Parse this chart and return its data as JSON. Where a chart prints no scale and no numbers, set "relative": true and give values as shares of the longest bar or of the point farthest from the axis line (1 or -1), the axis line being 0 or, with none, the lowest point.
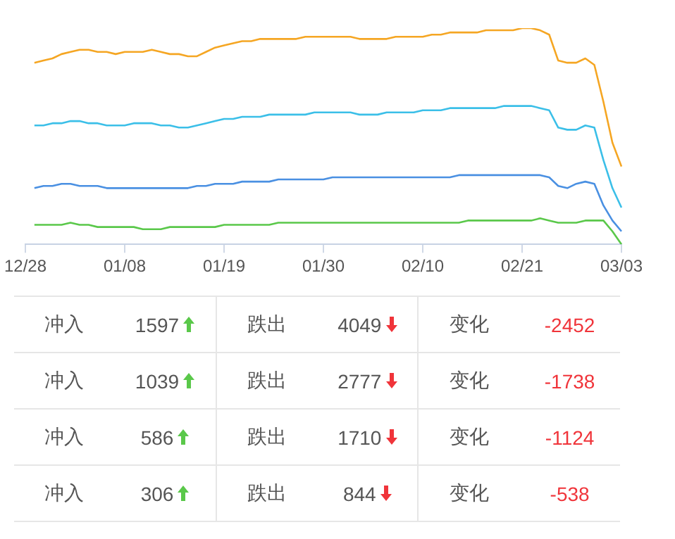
{
  "chart_data": {
    "type": "line",
    "relative": true,
    "marker": "none",
    "categories": [
      "12/28",
      null,
      null,
      null,
      null,
      null,
      null,
      null,
      null,
      null,
      null,
      "01/08",
      null,
      null,
      null,
      null,
      null,
      null,
      null,
      null,
      null,
      null,
      "01/19",
      null,
      null,
      null,
      null,
      null,
      null,
      null,
      null,
      null,
      null,
      "01/30",
      null,
      null,
      null,
      null,
      null,
      null,
      null,
      null,
      null,
      null,
      "02/10",
      null,
      null,
      null,
      null,
      null,
      null,
      null,
      null,
      null,
      null,
      "02/21",
      null,
      null,
      null,
      null,
      null,
      null,
      null,
      null,
      null,
      null,
      "03/03"
    ],
    "series": [
      {
        "color": "#f5a623",
        "values": [
          null,
          0.84,
          0.85,
          0.86,
          0.88,
          0.89,
          0.9,
          0.9,
          0.89,
          0.89,
          0.88,
          0.89,
          0.89,
          0.89,
          0.9,
          0.89,
          0.88,
          0.88,
          0.87,
          0.87,
          0.89,
          0.91,
          0.92,
          0.93,
          0.94,
          0.94,
          0.95,
          0.95,
          0.95,
          0.95,
          0.95,
          0.96,
          0.96,
          0.96,
          0.96,
          0.96,
          0.96,
          0.95,
          0.95,
          0.95,
          0.95,
          0.96,
          0.96,
          0.96,
          0.96,
          0.97,
          0.97,
          0.98,
          0.98,
          0.98,
          0.98,
          0.99,
          0.99,
          0.99,
          0.99,
          1,
          1,
          0.99,
          0.97,
          0.85,
          0.84,
          0.84,
          0.86,
          0.83,
          0.66,
          0.47,
          0.36
        ]
      },
      {
        "color": "#3bbfe8",
        "values": [
          null,
          0.55,
          0.55,
          0.56,
          0.56,
          0.57,
          0.57,
          0.56,
          0.56,
          0.55,
          0.55,
          0.55,
          0.56,
          0.56,
          0.56,
          0.55,
          0.55,
          0.54,
          0.54,
          0.55,
          0.56,
          0.57,
          0.58,
          0.58,
          0.59,
          0.59,
          0.59,
          0.6,
          0.6,
          0.6,
          0.6,
          0.6,
          0.61,
          0.61,
          0.61,
          0.61,
          0.61,
          0.6,
          0.6,
          0.6,
          0.61,
          0.61,
          0.61,
          0.61,
          0.62,
          0.62,
          0.62,
          0.63,
          0.63,
          0.63,
          0.63,
          0.63,
          0.63,
          0.64,
          0.64,
          0.64,
          0.64,
          0.63,
          0.62,
          0.54,
          0.53,
          0.53,
          0.55,
          0.54,
          0.39,
          0.26,
          0.17
        ]
      },
      {
        "color": "#4a90e2",
        "values": [
          null,
          0.26,
          0.27,
          0.27,
          0.28,
          0.28,
          0.27,
          0.27,
          0.27,
          0.26,
          0.26,
          0.26,
          0.26,
          0.26,
          0.26,
          0.26,
          0.26,
          0.26,
          0.26,
          0.27,
          0.27,
          0.28,
          0.28,
          0.28,
          0.29,
          0.29,
          0.29,
          0.29,
          0.3,
          0.3,
          0.3,
          0.3,
          0.3,
          0.3,
          0.31,
          0.31,
          0.31,
          0.31,
          0.31,
          0.31,
          0.31,
          0.31,
          0.31,
          0.31,
          0.31,
          0.31,
          0.31,
          0.31,
          0.32,
          0.32,
          0.32,
          0.32,
          0.32,
          0.32,
          0.32,
          0.32,
          0.32,
          0.32,
          0.31,
          0.27,
          0.26,
          0.28,
          0.29,
          0.28,
          0.18,
          0.11,
          0.06
        ]
      },
      {
        "color": "#5ac84a",
        "values": [
          null,
          0.09,
          0.09,
          0.09,
          0.09,
          0.1,
          0.09,
          0.09,
          0.08,
          0.08,
          0.08,
          0.08,
          0.08,
          0.07,
          0.07,
          0.07,
          0.08,
          0.08,
          0.08,
          0.08,
          0.08,
          0.08,
          0.09,
          0.09,
          0.09,
          0.09,
          0.09,
          0.09,
          0.1,
          0.1,
          0.1,
          0.1,
          0.1,
          0.1,
          0.1,
          0.1,
          0.1,
          0.1,
          0.1,
          0.1,
          0.1,
          0.1,
          0.1,
          0.1,
          0.1,
          0.1,
          0.1,
          0.1,
          0.1,
          0.11,
          0.11,
          0.11,
          0.11,
          0.11,
          0.11,
          0.11,
          0.11,
          0.12,
          0.11,
          0.1,
          0.1,
          0.1,
          0.11,
          0.11,
          0.11,
          0.06,
          0
        ]
      }
    ],
    "annotations": [
      "冲入",
      "1597",
      "跌出",
      "4049",
      "变化",
      "-2452",
      "冲入",
      "1039",
      "跌出",
      "2777",
      "变化",
      "-1738",
      "冲入",
      "586",
      "跌出",
      "1710",
      "变化",
      "-1124",
      "冲入",
      "306",
      "跌出",
      "844",
      "变化",
      "-538"
    ]
  }
}
